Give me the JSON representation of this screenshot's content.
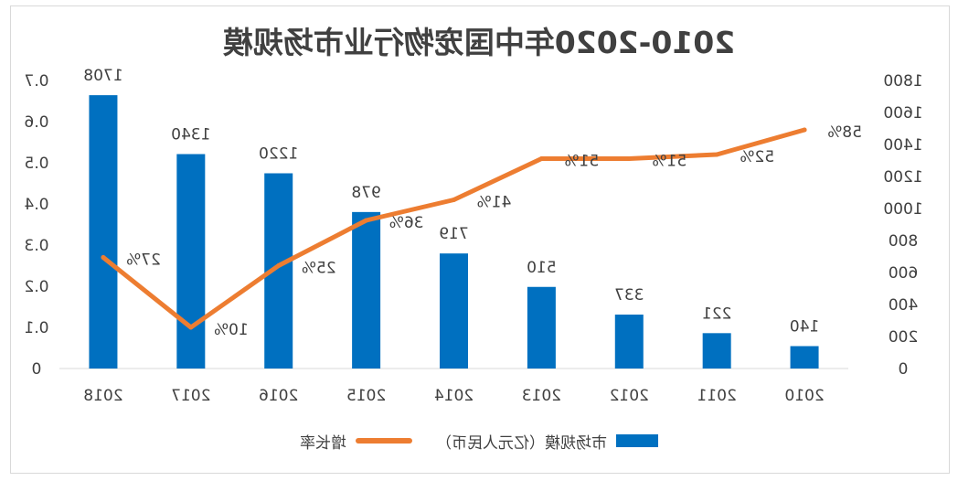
{
  "title": "2010-2020年中国宠物行业市场规模",
  "chart_data": {
    "type": "bar",
    "categories": [
      "2010",
      "2011",
      "2012",
      "2013",
      "2014",
      "2015",
      "2016",
      "2017",
      "2018"
    ],
    "series": [
      {
        "name": "市场规模（亿元人民币）",
        "type": "bar",
        "axis": "right",
        "values": [
          140,
          221,
          337,
          510,
          719,
          978,
          1220,
          1340,
          1708
        ],
        "labels": [
          "140",
          "221",
          "337",
          "510",
          "719",
          "978",
          "1220",
          "1340",
          "1708"
        ],
        "color": "#0070c0"
      },
      {
        "name": "增长率",
        "type": "line",
        "axis": "left",
        "values": [
          0.58,
          0.52,
          0.51,
          0.51,
          0.41,
          0.36,
          0.25,
          0.1,
          0.27
        ],
        "labels": [
          "58%",
          "52%",
          "51%",
          "51%",
          "41%",
          "36%",
          "25%",
          "10%",
          "27%"
        ],
        "color": "#ed7d31"
      }
    ],
    "y_left": {
      "ticks": [
        "0",
        "0.1",
        "0.2",
        "0.3",
        "0.4",
        "0.5",
        "0.6",
        "0.7"
      ],
      "ylim": [
        0,
        0.7
      ]
    },
    "y_right": {
      "ticks": [
        "0",
        "200",
        "400",
        "600",
        "800",
        "1000",
        "1200",
        "1400",
        "1600",
        "1800"
      ],
      "ylim": [
        0,
        1800
      ]
    },
    "grid": false,
    "legend": "bottom"
  }
}
